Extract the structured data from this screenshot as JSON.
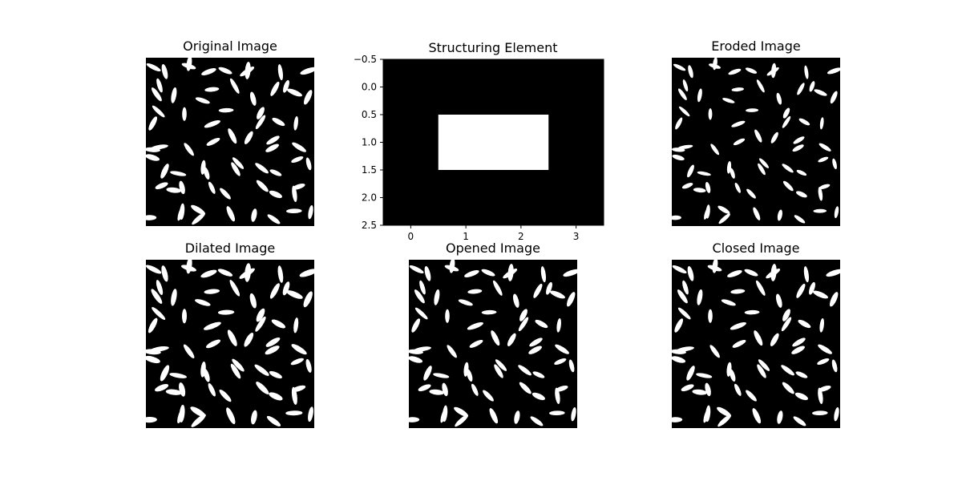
{
  "chart_data": [
    {
      "type": "image",
      "title": "Original Image",
      "cmap": "gray",
      "axis": "off",
      "content": "binary rice-grain mask"
    },
    {
      "type": "heatmap",
      "title": "Structuring Element",
      "cmap": "gray",
      "xlabel": "",
      "ylabel": "",
      "matrix": [
        [
          0,
          0,
          0,
          0
        ],
        [
          0,
          1,
          1,
          0
        ],
        [
          0,
          0,
          0,
          0
        ]
      ],
      "xlim": [
        -0.5,
        3.5
      ],
      "ylim": [
        2.5,
        -0.5
      ],
      "xticks": [
        "0",
        "1",
        "2",
        "3"
      ],
      "yticks": [
        "−0.5",
        "0.0",
        "0.5",
        "1.0",
        "1.5",
        "2.0",
        "2.5"
      ],
      "white_rect": {
        "x0": 0.5,
        "x1": 2.5,
        "y0": 0.5,
        "y1": 1.5
      }
    },
    {
      "type": "image",
      "title": "Eroded Image",
      "cmap": "gray",
      "axis": "off",
      "content": "binary rice-grain mask"
    },
    {
      "type": "image",
      "title": "Dilated Image",
      "cmap": "gray",
      "axis": "off",
      "content": "binary rice-grain mask"
    },
    {
      "type": "image",
      "title": "Opened Image",
      "cmap": "gray",
      "axis": "off",
      "content": "binary rice-grain mask"
    },
    {
      "type": "image",
      "title": "Closed Image",
      "cmap": "gray",
      "axis": "off",
      "content": "binary rice-grain mask"
    }
  ],
  "colors": {
    "background": "#ffffff",
    "object": "#ffffff",
    "image_bg": "#000000",
    "text": "#000000"
  }
}
